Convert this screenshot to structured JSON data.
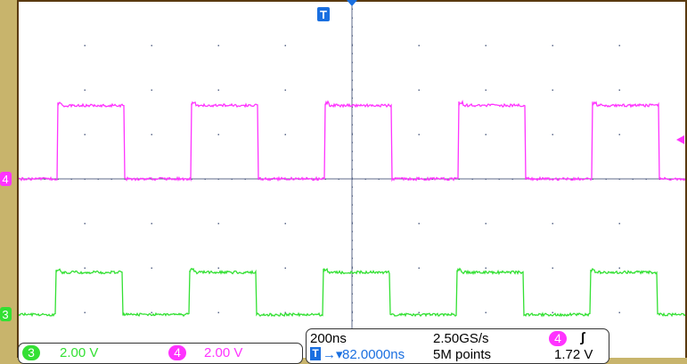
{
  "colors": {
    "ch3": "#33e033",
    "ch4": "#ff33ff",
    "trigger": "#1a6fe0",
    "graticule": "#5c6a8a",
    "frame": "#5a3a10",
    "bezel": "#c8b46c"
  },
  "channels": [
    {
      "number": "3",
      "scale": "2.00 V",
      "color": "#33e033"
    },
    {
      "number": "4",
      "scale": "2.00 V",
      "color": "#ff33ff"
    }
  ],
  "horizontal": {
    "timebase": "200ns",
    "sample_rate": "2.50GS/s",
    "record_length": "5M points",
    "trigger_delay": "82.0000ns",
    "trigger_icon": "T"
  },
  "trigger": {
    "source": "4",
    "slope_icon": "rising-edge-icon",
    "slope_glyph": "∫",
    "level": "1.72 V"
  },
  "markers": {
    "ch4": "4",
    "ch3": "3",
    "trigger": "T"
  },
  "waveforms": {
    "period_ns": 400,
    "high_time_ns": 200,
    "ch4_levels_div": [
      0,
      1.65
    ],
    "ch3_levels_div": [
      -3.05,
      -2.1
    ]
  }
}
